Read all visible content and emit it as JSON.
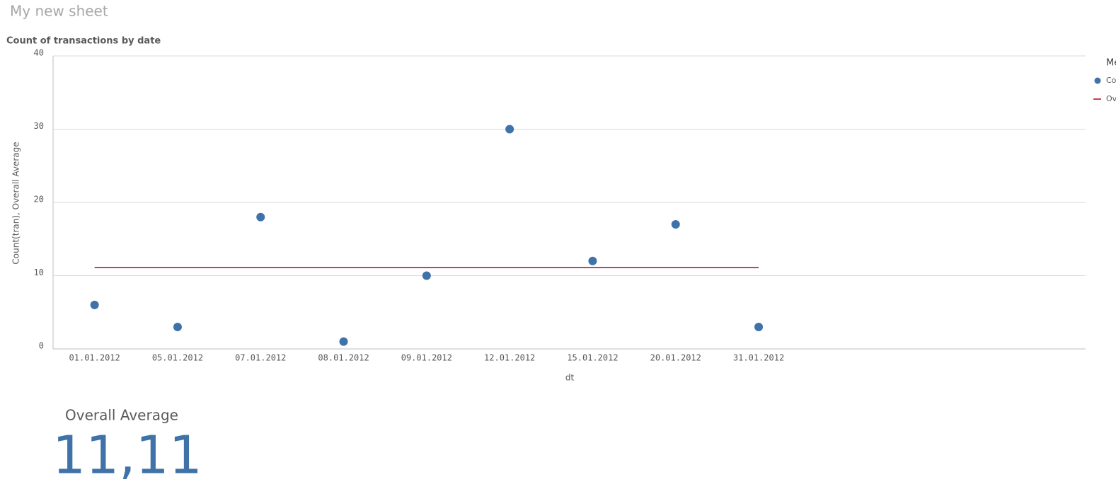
{
  "sheet_title": "My new sheet",
  "chart_data": {
    "type": "scatter",
    "title": "Count of transactions by date",
    "x_label": "dt",
    "y_label": "Count(tran), Overall Average",
    "categories": [
      "01.01.2012",
      "05.01.2012",
      "07.01.2012",
      "08.01.2012",
      "09.01.2012",
      "12.01.2012",
      "15.01.2012",
      "20.01.2012",
      "31.01.2012"
    ],
    "series": [
      {
        "name": "Count(tran)",
        "color": "#3f72a8",
        "mark": "point",
        "values": [
          6,
          3,
          18,
          1,
          10,
          30,
          12,
          17,
          3
        ]
      },
      {
        "name": "Overall Average",
        "color": "#c8405e",
        "mark": "line",
        "values": [
          11.11,
          11.11,
          11.11,
          11.11,
          11.11,
          11.11,
          11.11,
          11.11,
          11.11
        ]
      }
    ],
    "legend_title": "Measures",
    "legend_position": "right",
    "ylim": [
      0,
      40
    ],
    "yticks": [
      0,
      10,
      20,
      30,
      40
    ],
    "grid": true
  },
  "kpi": {
    "label": "Overall Average",
    "value": "11,11"
  }
}
